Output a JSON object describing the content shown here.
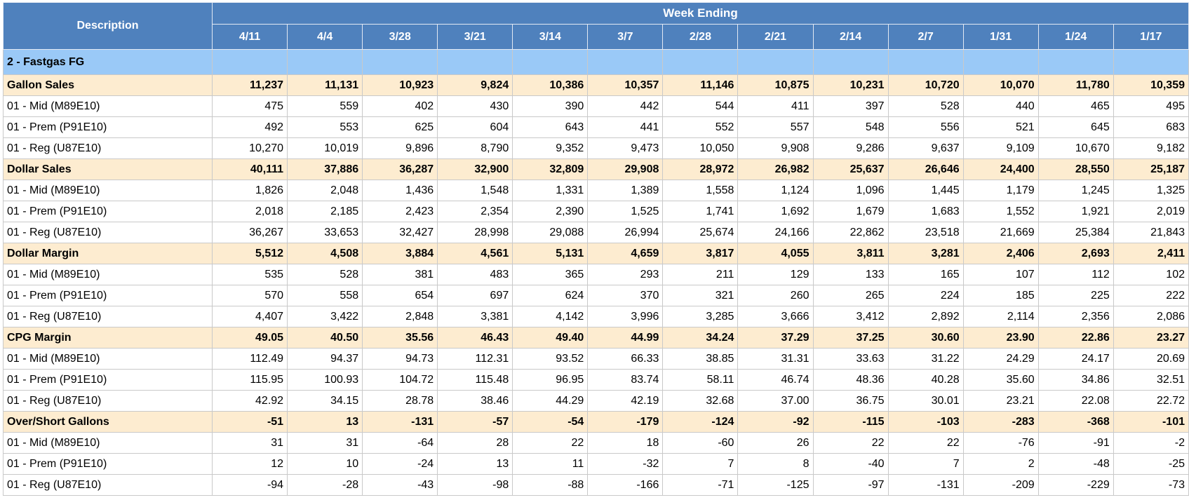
{
  "header": {
    "description_label": "Description",
    "week_group_label": "Week Ending",
    "weeks": [
      "4/11",
      "4/4",
      "3/28",
      "3/21",
      "3/14",
      "3/7",
      "2/28",
      "2/21",
      "2/14",
      "2/7",
      "1/31",
      "1/24",
      "1/17"
    ]
  },
  "section": {
    "label": "2 - Fastgas FG"
  },
  "rows": [
    {
      "type": "metric",
      "label": "Gallon Sales",
      "values": [
        "11,237",
        "11,131",
        "10,923",
        "9,824",
        "10,386",
        "10,357",
        "11,146",
        "10,875",
        "10,231",
        "10,720",
        "10,070",
        "11,780",
        "10,359"
      ]
    },
    {
      "type": "detail",
      "label": "01 - Mid (M89E10)",
      "values": [
        "475",
        "559",
        "402",
        "430",
        "390",
        "442",
        "544",
        "411",
        "397",
        "528",
        "440",
        "465",
        "495"
      ]
    },
    {
      "type": "detail",
      "label": "01 - Prem (P91E10)",
      "values": [
        "492",
        "553",
        "625",
        "604",
        "643",
        "441",
        "552",
        "557",
        "548",
        "556",
        "521",
        "645",
        "683"
      ]
    },
    {
      "type": "detail",
      "label": "01 - Reg (U87E10)",
      "values": [
        "10,270",
        "10,019",
        "9,896",
        "8,790",
        "9,352",
        "9,473",
        "10,050",
        "9,908",
        "9,286",
        "9,637",
        "9,109",
        "10,670",
        "9,182"
      ]
    },
    {
      "type": "metric",
      "label": "Dollar Sales",
      "values": [
        "40,111",
        "37,886",
        "36,287",
        "32,900",
        "32,809",
        "29,908",
        "28,972",
        "26,982",
        "25,637",
        "26,646",
        "24,400",
        "28,550",
        "25,187"
      ]
    },
    {
      "type": "detail",
      "label": "01 - Mid (M89E10)",
      "values": [
        "1,826",
        "2,048",
        "1,436",
        "1,548",
        "1,331",
        "1,389",
        "1,558",
        "1,124",
        "1,096",
        "1,445",
        "1,179",
        "1,245",
        "1,325"
      ]
    },
    {
      "type": "detail",
      "label": "01 - Prem (P91E10)",
      "values": [
        "2,018",
        "2,185",
        "2,423",
        "2,354",
        "2,390",
        "1,525",
        "1,741",
        "1,692",
        "1,679",
        "1,683",
        "1,552",
        "1,921",
        "2,019"
      ]
    },
    {
      "type": "detail",
      "label": "01 - Reg (U87E10)",
      "values": [
        "36,267",
        "33,653",
        "32,427",
        "28,998",
        "29,088",
        "26,994",
        "25,674",
        "24,166",
        "22,862",
        "23,518",
        "21,669",
        "25,384",
        "21,843"
      ]
    },
    {
      "type": "metric",
      "label": "Dollar Margin",
      "values": [
        "5,512",
        "4,508",
        "3,884",
        "4,561",
        "5,131",
        "4,659",
        "3,817",
        "4,055",
        "3,811",
        "3,281",
        "2,406",
        "2,693",
        "2,411"
      ]
    },
    {
      "type": "detail",
      "label": "01 - Mid (M89E10)",
      "values": [
        "535",
        "528",
        "381",
        "483",
        "365",
        "293",
        "211",
        "129",
        "133",
        "165",
        "107",
        "112",
        "102"
      ]
    },
    {
      "type": "detail",
      "label": "01 - Prem (P91E10)",
      "values": [
        "570",
        "558",
        "654",
        "697",
        "624",
        "370",
        "321",
        "260",
        "265",
        "224",
        "185",
        "225",
        "222"
      ]
    },
    {
      "type": "detail",
      "label": "01 - Reg (U87E10)",
      "values": [
        "4,407",
        "3,422",
        "2,848",
        "3,381",
        "4,142",
        "3,996",
        "3,285",
        "3,666",
        "3,412",
        "2,892",
        "2,114",
        "2,356",
        "2,086"
      ]
    },
    {
      "type": "metric",
      "label": "CPG Margin",
      "values": [
        "49.05",
        "40.50",
        "35.56",
        "46.43",
        "49.40",
        "44.99",
        "34.24",
        "37.29",
        "37.25",
        "30.60",
        "23.90",
        "22.86",
        "23.27"
      ]
    },
    {
      "type": "detail",
      "label": "01 - Mid (M89E10)",
      "values": [
        "112.49",
        "94.37",
        "94.73",
        "112.31",
        "93.52",
        "66.33",
        "38.85",
        "31.31",
        "33.63",
        "31.22",
        "24.29",
        "24.17",
        "20.69"
      ]
    },
    {
      "type": "detail",
      "label": "01 - Prem (P91E10)",
      "values": [
        "115.95",
        "100.93",
        "104.72",
        "115.48",
        "96.95",
        "83.74",
        "58.11",
        "46.74",
        "48.36",
        "40.28",
        "35.60",
        "34.86",
        "32.51"
      ]
    },
    {
      "type": "detail",
      "label": "01 - Reg (U87E10)",
      "values": [
        "42.92",
        "34.15",
        "28.78",
        "38.46",
        "44.29",
        "42.19",
        "32.68",
        "37.00",
        "36.75",
        "30.01",
        "23.21",
        "22.08",
        "22.72"
      ]
    },
    {
      "type": "metric",
      "label": "Over/Short Gallons",
      "values": [
        "-51",
        "13",
        "-131",
        "-57",
        "-54",
        "-179",
        "-124",
        "-92",
        "-115",
        "-103",
        "-283",
        "-368",
        "-101"
      ]
    },
    {
      "type": "detail",
      "label": "01 - Mid (M89E10)",
      "values": [
        "31",
        "31",
        "-64",
        "28",
        "22",
        "18",
        "-60",
        "26",
        "22",
        "22",
        "-76",
        "-91",
        "-2"
      ]
    },
    {
      "type": "detail",
      "label": "01 - Prem (P91E10)",
      "values": [
        "12",
        "10",
        "-24",
        "13",
        "11",
        "-32",
        "7",
        "8",
        "-40",
        "7",
        "2",
        "-48",
        "-25"
      ]
    },
    {
      "type": "detail",
      "label": "01 - Reg (U87E10)",
      "values": [
        "-94",
        "-28",
        "-43",
        "-98",
        "-88",
        "-166",
        "-71",
        "-125",
        "-97",
        "-131",
        "-209",
        "-229",
        "-73"
      ]
    }
  ],
  "colors": {
    "header_bg": "#4f81bd",
    "section_bg": "#9ac9f7",
    "metric_bg": "#fdecd0",
    "detail_bg": "#ffffff"
  }
}
